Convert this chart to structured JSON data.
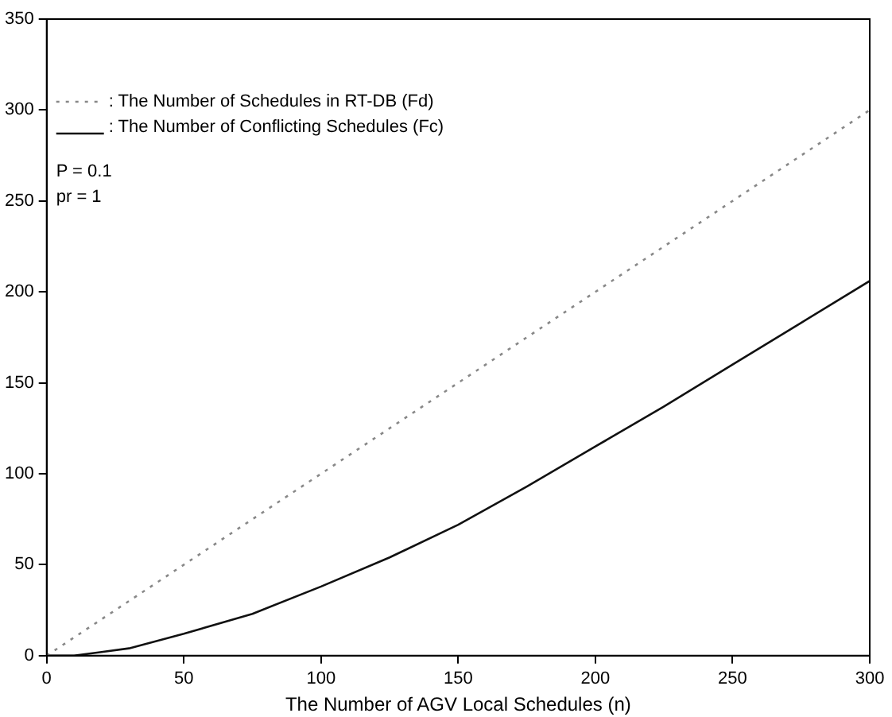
{
  "chart_data": {
    "type": "line",
    "xlabel": "The Number of AGV Local Schedules (n)",
    "xlim": [
      0,
      300
    ],
    "xticks": [
      0,
      50,
      100,
      150,
      200,
      250,
      300
    ],
    "ylim": [
      0,
      350
    ],
    "yticks": [
      0,
      50,
      100,
      150,
      200,
      250,
      300,
      350
    ],
    "grid": false,
    "legend": "top left",
    "marker": "none",
    "annotations": [
      "P = 0.1",
      "pr = 1"
    ],
    "series": [
      {
        "name": ": The Number of Schedules in RT-DB (Fd)",
        "color": "#888888",
        "line_style": "dotted",
        "x": [
          0,
          300
        ],
        "values": [
          0,
          300
        ]
      },
      {
        "name": ": The Number of Conflicting Schedules (Fc)",
        "color": "#111111",
        "line_style": "solid",
        "x": [
          0,
          10,
          20,
          30,
          50,
          75,
          100,
          125,
          150,
          175,
          200,
          225,
          250,
          275,
          300
        ],
        "values": [
          0,
          0,
          2,
          4,
          12,
          23,
          38,
          54,
          72,
          93,
          115,
          137,
          160,
          183,
          206
        ]
      }
    ]
  }
}
